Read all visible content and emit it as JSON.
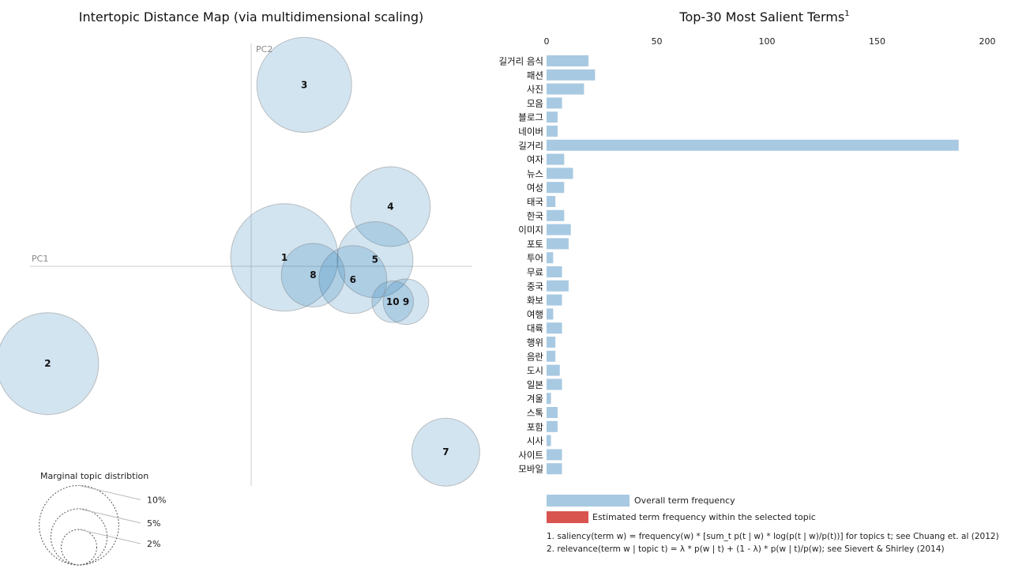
{
  "chart_data": [
    {
      "type": "scatter",
      "title": "Intertopic Distance Map (via multidimensional scaling)",
      "xlabel": "PC1",
      "ylabel": "PC2",
      "xlim": [
        -1.0,
        1.0
      ],
      "ylim": [
        -1.0,
        1.0
      ],
      "grid": false,
      "topics": [
        {
          "id": "1",
          "pc1": 0.15,
          "pc2": 0.04,
          "marginal_pct": 10.0
        },
        {
          "id": "2",
          "pc1": -0.92,
          "pc2": -0.44,
          "marginal_pct": 9.0
        },
        {
          "id": "3",
          "pc1": 0.24,
          "pc2": 0.82,
          "marginal_pct": 7.8
        },
        {
          "id": "4",
          "pc1": 0.63,
          "pc2": 0.27,
          "marginal_pct": 5.5
        },
        {
          "id": "5",
          "pc1": 0.56,
          "pc2": 0.03,
          "marginal_pct": 5.0
        },
        {
          "id": "6",
          "pc1": 0.46,
          "pc2": -0.06,
          "marginal_pct": 4.0
        },
        {
          "id": "7",
          "pc1": 0.88,
          "pc2": -0.84,
          "marginal_pct": 4.0
        },
        {
          "id": "8",
          "pc1": 0.28,
          "pc2": -0.04,
          "marginal_pct": 3.5
        },
        {
          "id": "9",
          "pc1": 0.7,
          "pc2": -0.16,
          "marginal_pct": 1.8
        },
        {
          "id": "10",
          "pc1": 0.64,
          "pc2": -0.16,
          "marginal_pct": 1.5
        }
      ],
      "legend": {
        "title": "Marginal topic distribtion",
        "items": [
          {
            "label": "2%",
            "pct": 2
          },
          {
            "label": "5%",
            "pct": 5
          },
          {
            "label": "10%",
            "pct": 10
          }
        ]
      }
    },
    {
      "type": "bar",
      "orientation": "horizontal",
      "title": "Top-30 Most Salient Terms",
      "title_sup": "1",
      "xlim": [
        0,
        200
      ],
      "xticks": [
        0,
        50,
        100,
        150,
        200
      ],
      "categories": [
        "길거리 음식",
        "패션",
        "사진",
        "모음",
        "블로그",
        "네이버",
        "길거리",
        "여자",
        "뉴스",
        "여성",
        "태국",
        "한국",
        "이미지",
        "포토",
        "투어",
        "무료",
        "중국",
        "화보",
        "여행",
        "대륙",
        "행위",
        "음란",
        "도시",
        "일본",
        "겨울",
        "스톡",
        "포함",
        "시사",
        "사이트",
        "모바일"
      ],
      "series": [
        {
          "name": "Overall term frequency",
          "color": "#a8c9e2",
          "values": [
            19,
            22,
            17,
            7,
            5,
            5,
            187,
            8,
            12,
            8,
            4,
            8,
            11,
            10,
            3,
            7,
            10,
            7,
            3,
            7,
            4,
            4,
            6,
            7,
            2,
            5,
            5,
            2,
            7,
            7
          ]
        }
      ]
    }
  ],
  "legend_bars": {
    "overall": {
      "label": "Overall term frequency",
      "color": "#a8c9e2"
    },
    "estimated": {
      "label": "Estimated term frequency within the selected topic",
      "color": "#d9534f"
    }
  },
  "footnotes": [
    "1. saliency(term w) = frequency(w) * [sum_t p(t | w) * log(p(t | w)/p(t))] for topics t; see Chuang et. al (2012)",
    "2. relevance(term w | topic t) = λ * p(w | t) + (1 - λ) * p(w | t)/p(w); see Sievert & Shirley (2014)"
  ]
}
